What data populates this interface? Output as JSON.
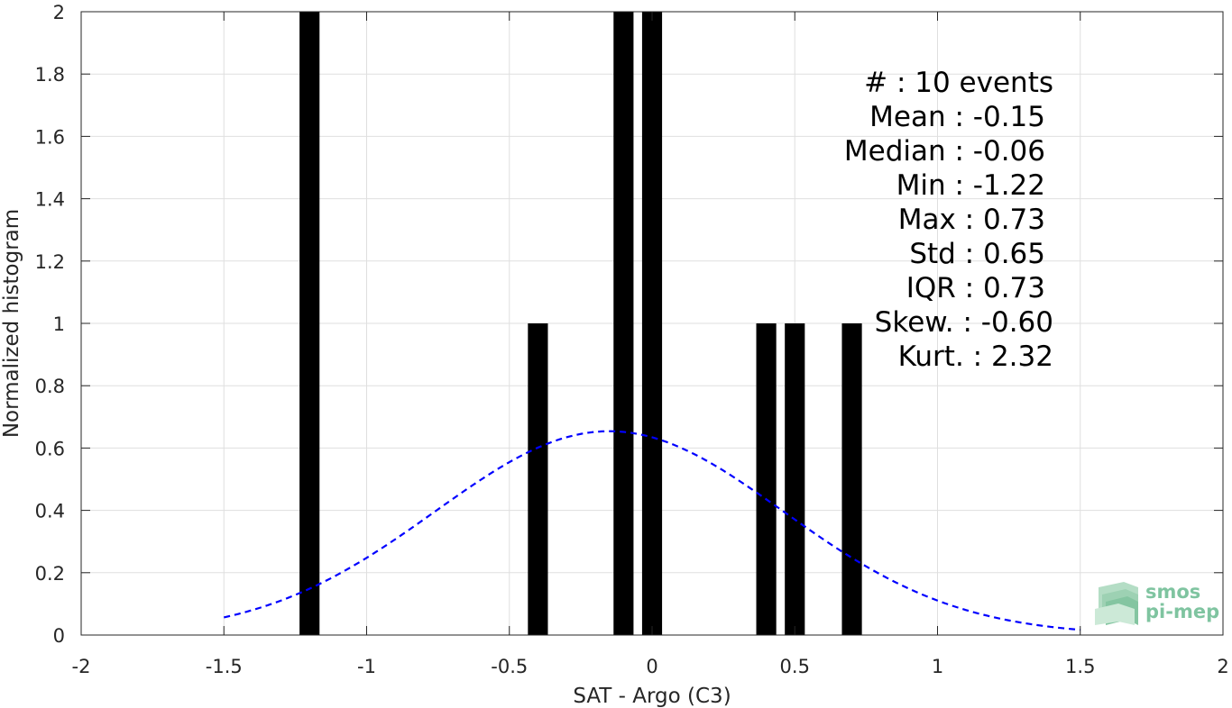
{
  "chart_data": {
    "type": "bar",
    "xlabel": "SAT - Argo (C3)",
    "ylabel": "Normalized histogram",
    "xlim": [
      -2,
      2
    ],
    "ylim": [
      0,
      2
    ],
    "grid": true,
    "xticks": [
      -2,
      -1.5,
      -1,
      -0.5,
      0,
      0.5,
      1,
      1.5,
      2
    ],
    "xtick_labels": [
      "-2",
      "-1.5",
      "-1",
      "-0.5",
      "0",
      "0.5",
      "1",
      "1.5",
      "2"
    ],
    "yticks": [
      0,
      0.2,
      0.4,
      0.6,
      0.8,
      1,
      1.2,
      1.4,
      1.6,
      1.8,
      2
    ],
    "ytick_labels": [
      "0",
      "0.2",
      "0.4",
      "0.6",
      "0.8",
      "1",
      "1.2",
      "1.4",
      "1.6",
      "1.8",
      "2"
    ],
    "bin_width": 0.07,
    "bar_color": "#000000",
    "bars": [
      {
        "x": -1.2,
        "value": 2
      },
      {
        "x": -0.4,
        "value": 1
      },
      {
        "x": -0.1,
        "value": 2
      },
      {
        "x": 0.0,
        "value": 2
      },
      {
        "x": 0.4,
        "value": 1
      },
      {
        "x": 0.5,
        "value": 1
      },
      {
        "x": 0.7,
        "value": 1
      }
    ],
    "fit_curve": {
      "style": "dashed",
      "color": "#0000ff",
      "mean": -0.15,
      "std": 0.61,
      "x_range": [
        -1.5,
        1.5
      ]
    },
    "stats": [
      "#  : 10 events",
      "Mean : -0.15",
      "Median : -0.06",
      "Min : -1.22",
      "Max : 0.73",
      "Std : 0.65",
      "IQR : 0.73",
      "Skew. : -0.60",
      "Kurt. : 2.32"
    ]
  },
  "logo": {
    "line1": "smos",
    "line2": "pi-mep",
    "color": "#7fc4a0"
  }
}
